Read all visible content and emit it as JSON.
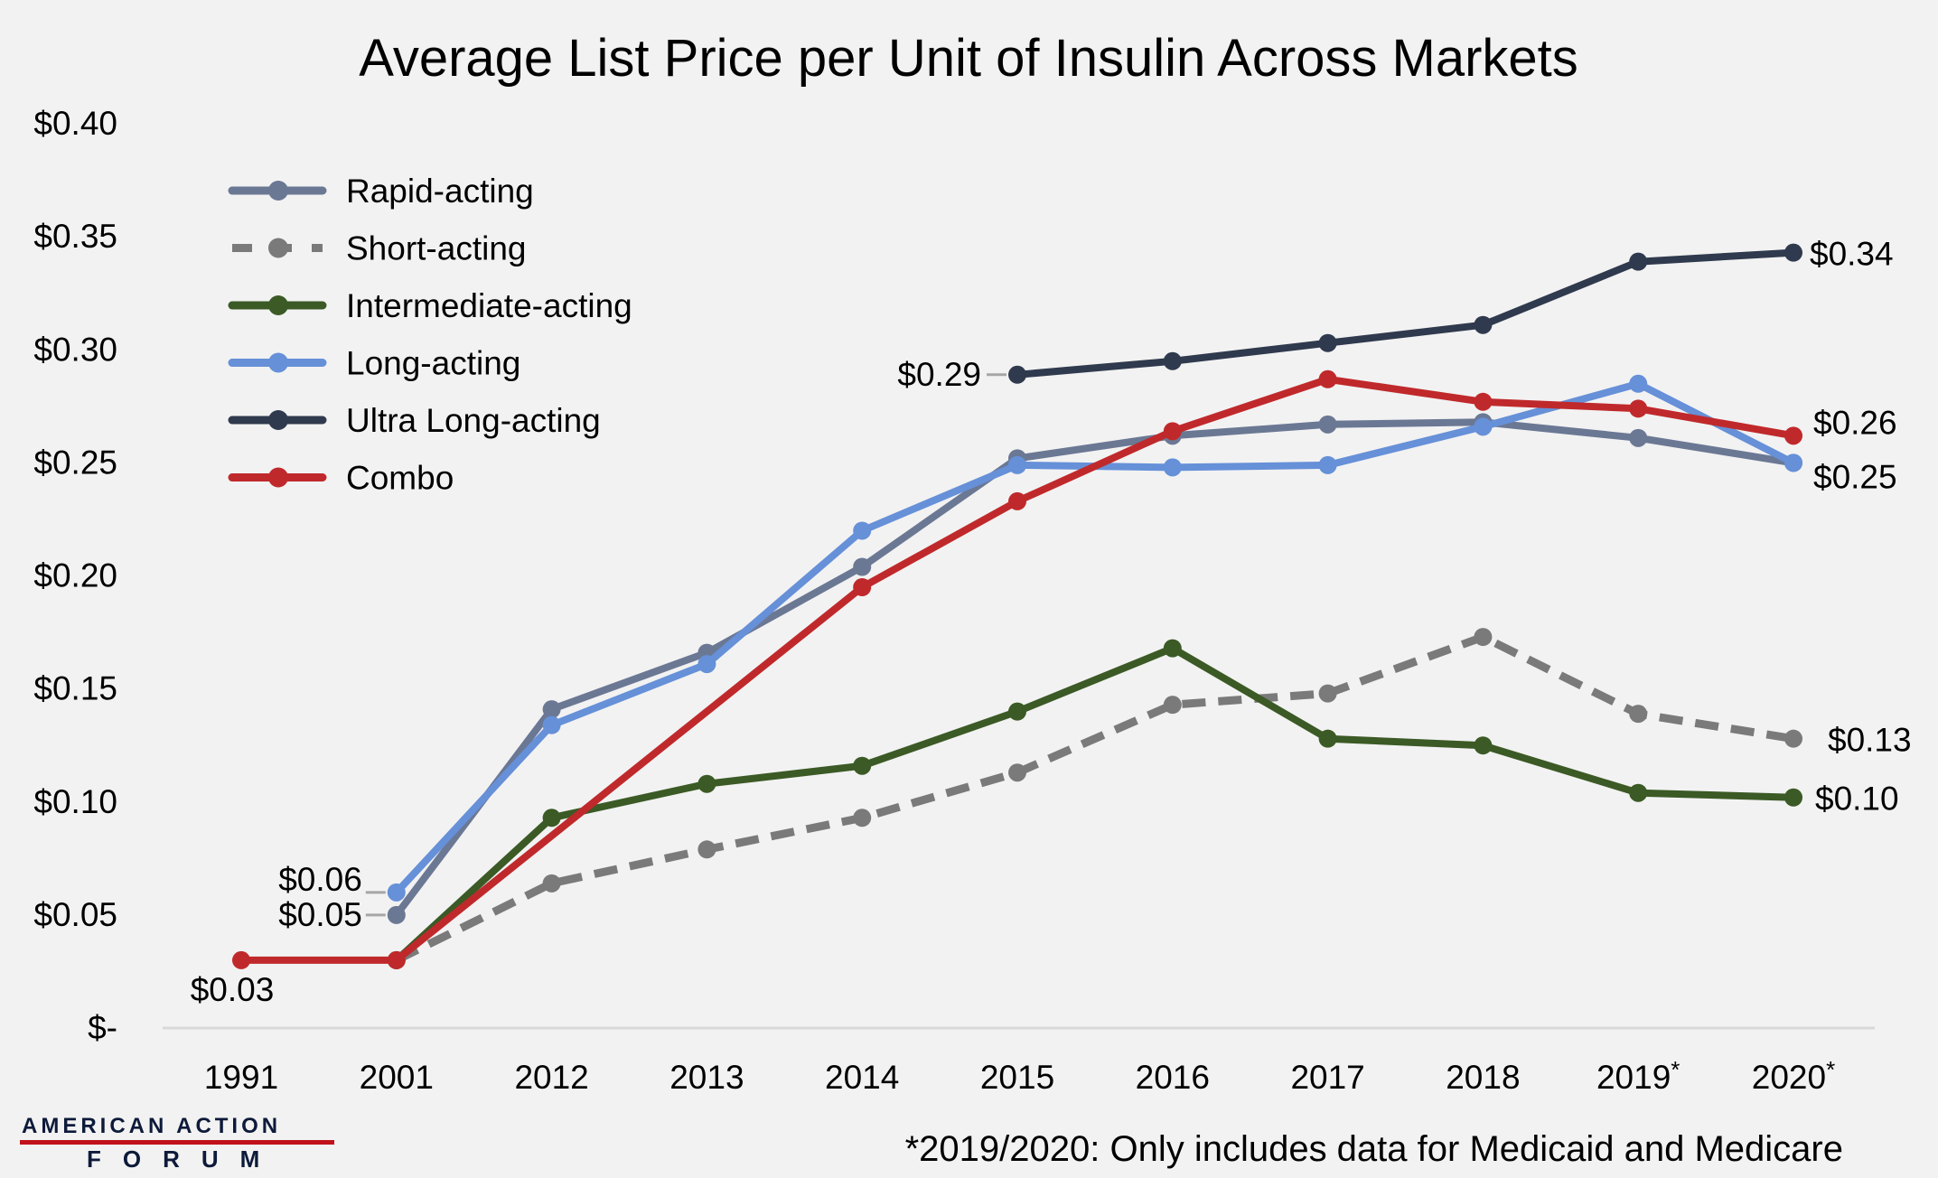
{
  "chart_data": {
    "type": "line",
    "title": "Average List Price per Unit of Insulin Across Markets",
    "xlabel": "",
    "ylabel": "",
    "categories": [
      "1991",
      "2001",
      "2012",
      "2013",
      "2014",
      "2015",
      "2016",
      "2017",
      "2018",
      "2019*",
      "2020*"
    ],
    "ylim": [
      0,
      0.4
    ],
    "yticks": [
      0,
      0.05,
      0.1,
      0.15,
      0.2,
      0.25,
      0.3,
      0.35,
      0.4
    ],
    "ytick_labels": [
      "$-",
      "$0.05",
      "$0.10",
      "$0.15",
      "$0.20",
      "$0.25",
      "$0.30",
      "$0.35",
      "$0.40"
    ],
    "grid": false,
    "legend_position": "top-left",
    "series": [
      {
        "name": "Rapid-acting",
        "color": "#6b7894",
        "dashed": false,
        "values": [
          null,
          0.05,
          0.141,
          0.166,
          0.204,
          0.252,
          0.262,
          0.267,
          0.268,
          0.261,
          0.25
        ]
      },
      {
        "name": "Short-acting",
        "color": "#7a7a7a",
        "dashed": true,
        "values": [
          null,
          0.03,
          0.064,
          0.079,
          0.093,
          0.113,
          0.143,
          0.148,
          0.173,
          0.139,
          0.128
        ]
      },
      {
        "name": "Intermediate-acting",
        "color": "#3b5a25",
        "dashed": false,
        "values": [
          null,
          0.03,
          0.093,
          0.108,
          0.116,
          0.14,
          0.168,
          0.128,
          0.125,
          0.104,
          0.102
        ]
      },
      {
        "name": "Long-acting",
        "color": "#6690d8",
        "dashed": false,
        "values": [
          null,
          0.06,
          0.134,
          0.161,
          0.22,
          0.249,
          0.248,
          0.249,
          0.266,
          0.285,
          0.25
        ]
      },
      {
        "name": "Ultra Long-acting",
        "color": "#303a4e",
        "dashed": false,
        "values": [
          null,
          null,
          null,
          null,
          null,
          0.289,
          0.295,
          0.303,
          0.311,
          0.339,
          0.343
        ]
      },
      {
        "name": "Combo",
        "color": "#c0292b",
        "dashed": false,
        "values": [
          0.03,
          0.03,
          null,
          null,
          0.195,
          0.233,
          0.264,
          0.287,
          0.277,
          0.274,
          0.262
        ]
      }
    ],
    "annotations": [
      {
        "text": "$0.03",
        "series": "Combo",
        "category": "1991"
      },
      {
        "text": "$0.05",
        "series": "Rapid-acting",
        "category": "2001"
      },
      {
        "text": "$0.06",
        "series": "Long-acting",
        "category": "2001"
      },
      {
        "text": "$0.29",
        "series": "Ultra Long-acting",
        "category": "2015"
      },
      {
        "text": "$0.34",
        "series": "Ultra Long-acting",
        "category": "2020*"
      },
      {
        "text": "$0.26",
        "series": "Combo",
        "category": "2020*"
      },
      {
        "text": "$0.25",
        "series": "Long-acting",
        "category": "2020*"
      },
      {
        "text": "$0.13",
        "series": "Short-acting",
        "category": "2020*"
      },
      {
        "text": "$0.10",
        "series": "Intermediate-acting",
        "category": "2020*"
      }
    ],
    "footnote": "*2019/2020: Only includes data for Medicaid and Medicare"
  },
  "logo": {
    "line1": "AMERICAN ACTION",
    "line2": "FORUM",
    "accent": "#c0121b"
  }
}
